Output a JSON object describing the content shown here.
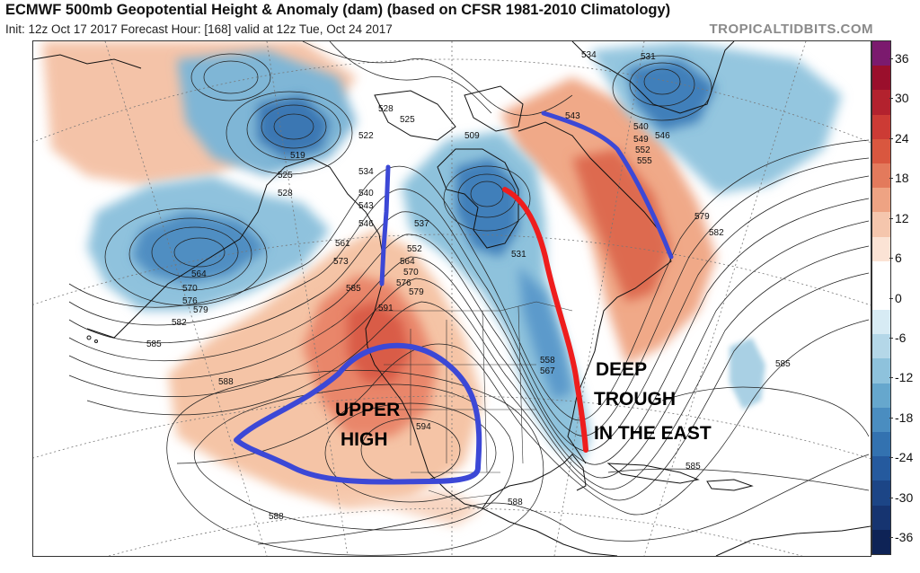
{
  "header": {
    "title": "ECMWF 500mb Geopotential Height & Anomaly (dam) (based on CFSR 1981-2010 Climatology)",
    "subtitle": "Init: 12z Oct 17 2017   Forecast Hour: [168]   valid at 12z Tue, Oct 24 2017",
    "brand": "TROPICALTIDBITS.COM"
  },
  "colorbar": {
    "labels": [
      "36",
      "30",
      "24",
      "18",
      "12",
      "6",
      "0",
      "-6",
      "-12",
      "-18",
      "-24",
      "-30",
      "-36"
    ],
    "colors": [
      "#7b1a6e",
      "#9a0f2c",
      "#b3222e",
      "#cc3b35",
      "#d9573f",
      "#e37a5c",
      "#eea383",
      "#f5c6ad",
      "#fbe3d5",
      "#ffffff",
      "#ffffff",
      "#d7ebf4",
      "#b4d7e8",
      "#8ec2dc",
      "#66a7cd",
      "#4a8dc0",
      "#3372b0",
      "#255a9e",
      "#1c4586",
      "#163470",
      "#0e2356"
    ]
  },
  "annotations": {
    "upper_high": [
      "UPPER",
      "HIGH"
    ],
    "deep_trough": [
      "DEEP",
      "TROUGH",
      "IN THE EAST"
    ]
  },
  "contour_labels": {
    "c509": "509",
    "c519": "519",
    "c522": "522",
    "c525a": "525",
    "c525b": "525",
    "c528a": "528",
    "c528b": "528",
    "c531a": "531",
    "c531b": "531",
    "c534a": "534",
    "c534b": "534",
    "c537": "537",
    "c540a": "540",
    "c540b": "540",
    "c543a": "543",
    "c543b": "543",
    "c546a": "546",
    "c546b": "546",
    "c549": "549",
    "c552a": "552",
    "c552b": "552",
    "c555": "555",
    "c558": "558",
    "c561": "561",
    "c564a": "564",
    "c564b": "564",
    "c567": "567",
    "c570a": "570",
    "c570b": "570",
    "c573": "573",
    "c576a": "576",
    "c576b": "576",
    "c579a": "579",
    "c579b": "579",
    "c579c": "579",
    "c582a": "582",
    "c582b": "582",
    "c585a": "585",
    "c585b": "585",
    "c585c": "585",
    "c585d": "585",
    "c588a": "588",
    "c588b": "588",
    "c588c": "588",
    "c591": "591",
    "c594": "594"
  }
}
